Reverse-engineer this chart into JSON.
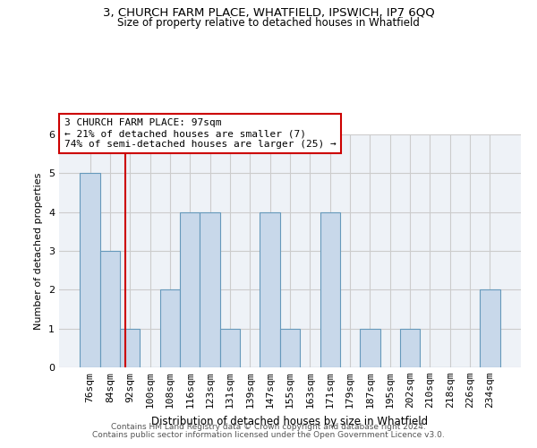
{
  "title1": "3, CHURCH FARM PLACE, WHATFIELD, IPSWICH, IP7 6QQ",
  "title2": "Size of property relative to detached houses in Whatfield",
  "xlabel": "Distribution of detached houses by size in Whatfield",
  "ylabel": "Number of detached properties",
  "categories": [
    "76sqm",
    "84sqm",
    "92sqm",
    "100sqm",
    "108sqm",
    "116sqm",
    "123sqm",
    "131sqm",
    "139sqm",
    "147sqm",
    "155sqm",
    "163sqm",
    "171sqm",
    "179sqm",
    "187sqm",
    "195sqm",
    "202sqm",
    "210sqm",
    "218sqm",
    "226sqm",
    "234sqm"
  ],
  "values": [
    5,
    3,
    1,
    0,
    2,
    4,
    4,
    1,
    0,
    4,
    1,
    0,
    4,
    0,
    1,
    0,
    1,
    0,
    0,
    0,
    2
  ],
  "bar_color": "#c8d8ea",
  "bar_edge_color": "#6699bb",
  "property_line_x": 1.75,
  "property_line_color": "#cc0000",
  "annotation_line1": "3 CHURCH FARM PLACE: 97sqm",
  "annotation_line2": "← 21% of detached houses are smaller (7)",
  "annotation_line3": "74% of semi-detached houses are larger (25) →",
  "annotation_box_color": "#ffffff",
  "annotation_box_edge_color": "#cc0000",
  "ylim": [
    0,
    6
  ],
  "yticks": [
    0,
    1,
    2,
    3,
    4,
    5,
    6
  ],
  "grid_color": "#cccccc",
  "footer1": "Contains HM Land Registry data © Crown copyright and database right 2024.",
  "footer2": "Contains public sector information licensed under the Open Government Licence v3.0.",
  "bg_color": "#eef2f7"
}
